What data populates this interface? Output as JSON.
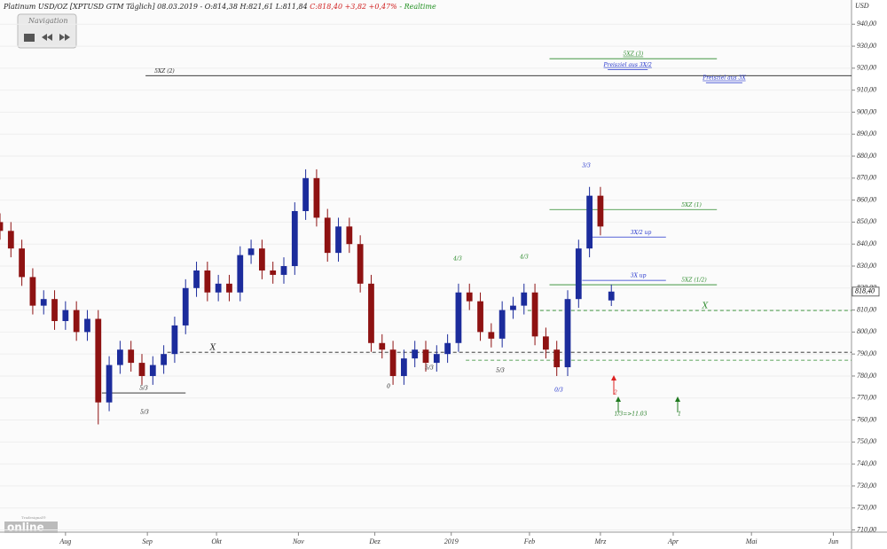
{
  "header": {
    "instrument": "Platinum USD/OZ [XPTUSD GTM Täglich] 08.03.2019 - O:814,38 H:821,61 L:811,84",
    "change": "C:818,40 +3,82 +0,47%",
    "status": "- Realtime"
  },
  "navigation": {
    "title": "Navigation"
  },
  "logo": {
    "top": "Tradesignal®",
    "main": "online"
  },
  "chart_data": {
    "type": "candlestick",
    "unit": "USD",
    "up_color": "#1c2c9c",
    "down_color": "#8e1212",
    "x": [
      0,
      3,
      6,
      9,
      12,
      15,
      18,
      21,
      24,
      27,
      30,
      33,
      36,
      39,
      42,
      45,
      48,
      51,
      54,
      57,
      60,
      63,
      66,
      69,
      72,
      75,
      78,
      81,
      84,
      87,
      90,
      93,
      96,
      99,
      102,
      105,
      108,
      111,
      114,
      117,
      120,
      123,
      126,
      129,
      132,
      135,
      138,
      141,
      144,
      147,
      150,
      153,
      156,
      159,
      162,
      165,
      168
    ],
    "open": [
      850,
      846,
      838,
      825,
      812,
      815,
      805,
      810,
      800,
      806,
      768,
      785,
      792,
      786,
      780,
      785,
      790,
      803,
      820,
      828,
      818,
      822,
      818,
      835,
      838,
      828,
      826,
      830,
      855,
      870,
      852,
      836,
      848,
      840,
      822,
      795,
      792,
      780,
      788,
      792,
      786,
      790,
      795,
      818,
      814,
      800,
      797,
      810,
      812,
      818,
      798,
      792,
      784,
      815,
      838,
      862,
      814.38
    ],
    "high": [
      854,
      850,
      842,
      829,
      819,
      819,
      814,
      814,
      810,
      810,
      789,
      796,
      796,
      790,
      789,
      794,
      807,
      824,
      832,
      832,
      826,
      826,
      839,
      842,
      842,
      832,
      834,
      859,
      874,
      874,
      856,
      852,
      852,
      844,
      826,
      799,
      796,
      792,
      796,
      796,
      794,
      799,
      822,
      822,
      818,
      804,
      814,
      816,
      822,
      822,
      802,
      796,
      819,
      842,
      866,
      866,
      821.61
    ],
    "low": [
      842,
      834,
      821,
      808,
      808,
      801,
      801,
      796,
      796,
      758,
      764,
      781,
      782,
      776,
      776,
      781,
      786,
      799,
      816,
      814,
      814,
      814,
      814,
      831,
      824,
      822,
      822,
      826,
      851,
      848,
      832,
      832,
      836,
      818,
      791,
      788,
      776,
      776,
      784,
      782,
      782,
      786,
      791,
      810,
      796,
      793,
      793,
      806,
      808,
      794,
      788,
      780,
      780,
      811,
      834,
      844,
      811.84
    ],
    "close": [
      846,
      838,
      825,
      812,
      815,
      805,
      810,
      800,
      806,
      768,
      785,
      792,
      786,
      780,
      785,
      790,
      803,
      820,
      828,
      818,
      822,
      818,
      835,
      838,
      828,
      826,
      830,
      855,
      870,
      852,
      836,
      848,
      840,
      822,
      795,
      792,
      780,
      788,
      792,
      786,
      790,
      795,
      818,
      814,
      800,
      797,
      810,
      812,
      818,
      798,
      792,
      784,
      815,
      838,
      862,
      848,
      818.4
    ],
    "last": {
      "value": 818.4,
      "label": "818,40"
    },
    "xlim": [
      0,
      234
    ],
    "xticks": [
      {
        "value": 18,
        "label": "Aug"
      },
      {
        "value": 40.5,
        "label": "Sep"
      },
      {
        "value": 59.5,
        "label": "Okt"
      },
      {
        "value": 82,
        "label": "Nov"
      },
      {
        "value": 103,
        "label": "Dez"
      },
      {
        "value": 124,
        "label": "2019"
      },
      {
        "value": 145.5,
        "label": "Feb"
      },
      {
        "value": 165,
        "label": "Mrz"
      },
      {
        "value": 185,
        "label": "Apr"
      },
      {
        "value": 206.5,
        "label": "Mai"
      },
      {
        "value": 229,
        "label": "Jun"
      }
    ],
    "ylim": [
      709,
      951
    ],
    "yticks": [
      {
        "value": 710,
        "label": "710,00"
      },
      {
        "value": 720,
        "label": "720,00"
      },
      {
        "value": 730,
        "label": "730,00"
      },
      {
        "value": 740,
        "label": "740,00"
      },
      {
        "value": 750,
        "label": "750,00"
      },
      {
        "value": 760,
        "label": "760,00"
      },
      {
        "value": 770,
        "label": "770,00"
      },
      {
        "value": 780,
        "label": "780,00"
      },
      {
        "value": 790,
        "label": "790,00"
      },
      {
        "value": 800,
        "label": "800,00"
      },
      {
        "value": 810,
        "label": "810,00"
      },
      {
        "value": 820,
        "label": "820,00"
      },
      {
        "value": 830,
        "label": "830,00"
      },
      {
        "value": 840,
        "label": "840,00"
      },
      {
        "value": 850,
        "label": "850,00"
      },
      {
        "value": 860,
        "label": "860,00"
      },
      {
        "value": 870,
        "label": "870,00"
      },
      {
        "value": 880,
        "label": "880,00"
      },
      {
        "value": 890,
        "label": "890,00"
      },
      {
        "value": 900,
        "label": "900,00"
      },
      {
        "value": 910,
        "label": "910,00"
      },
      {
        "value": 920,
        "label": "920,00"
      },
      {
        "value": 930,
        "label": "930,00"
      },
      {
        "value": 940,
        "label": "940,00"
      }
    ],
    "levels": [
      {
        "label": "5XZ (2)",
        "value": 916.6,
        "x": [
          40,
          234
        ],
        "color": "#222222",
        "dashed": false
      },
      {
        "label": "5XZ (3)",
        "value": 924.3,
        "x": [
          151,
          197
        ],
        "color": "#2a8a2a",
        "dashed": false
      },
      {
        "label": "Preisziel aus 3X/2",
        "value": 919.4,
        "x": [
          167,
          178
        ],
        "color": "#2233cc",
        "dashed": false
      },
      {
        "label": "Preisziel aus 3X",
        "value": 913.4,
        "x": [
          194,
          204
        ],
        "color": "#2233cc",
        "dashed": false
      },
      {
        "label": "5XZ (1)",
        "value": 855.7,
        "x": [
          151,
          197
        ],
        "color": "#2a8a2a",
        "dashed": false
      },
      {
        "label": "3X/2 up",
        "value": 843.2,
        "x": [
          162,
          183
        ],
        "color": "#2233cc",
        "dashed": false
      },
      {
        "label": "3X up",
        "value": 823.5,
        "x": [
          160,
          183
        ],
        "color": "#2233cc",
        "dashed": false
      },
      {
        "label": "5XZ (1/2)",
        "value": 821.5,
        "x": [
          151,
          197
        ],
        "color": "#2a8a2a",
        "dashed": false
      },
      {
        "label": "X",
        "value": 809.8,
        "x": [
          145,
          234
        ],
        "color": "#2a8a2a",
        "dashed": true
      },
      {
        "label": "X",
        "value": 790.8,
        "x": [
          46,
          234
        ],
        "color": "#222222",
        "dashed": true
      },
      {
        "value": 787.2,
        "x": [
          128,
          234
        ],
        "color": "#2a8a2a",
        "dashed": true
      },
      {
        "label": "5/3",
        "value": 772.3,
        "x": [
          28,
          51
        ],
        "color": "#222222",
        "dashed": false
      }
    ],
    "annotations": [
      "0",
      "5/3",
      "5/3",
      "4/3",
      "4/3",
      "5/3",
      "0/3",
      "3/3"
    ],
    "arrows": [
      {
        "label": "2",
        "color": "#dd2222"
      },
      {
        "label": "1/3=>11.03",
        "color": "#1f7a1f"
      },
      {
        "label": "1",
        "color": "#1f7a1f"
      }
    ]
  }
}
